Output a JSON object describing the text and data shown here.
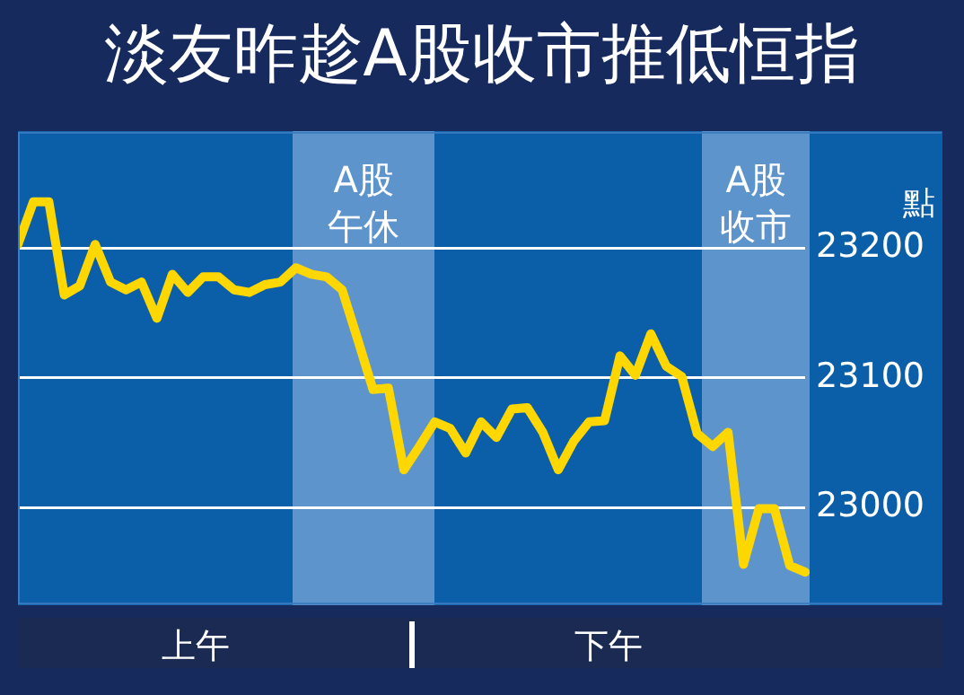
{
  "chart_data": {
    "type": "line",
    "title": "淡友昨趁A股收市推低恒指",
    "ylabel": "點",
    "categories": [
      null,
      null,
      null,
      null,
      null,
      null,
      null,
      null,
      null,
      null,
      null,
      null,
      null,
      null,
      null,
      null,
      null,
      null,
      null,
      null,
      null,
      null,
      null,
      null,
      null,
      null,
      null,
      null,
      null,
      null,
      null,
      null,
      null,
      null,
      null,
      null,
      null,
      null,
      null,
      null,
      null,
      null,
      null,
      null,
      null,
      null,
      null,
      null,
      null,
      null,
      null,
      null
    ],
    "series": [
      {
        "color": "#ffd700",
        "values": [
          23203,
          23236,
          23236,
          23164,
          23171,
          23203,
          23174,
          23168,
          23174,
          23146,
          23180,
          23166,
          23178,
          23178,
          23168,
          23166,
          23172,
          23174,
          23185,
          23180,
          23178,
          23168,
          23130,
          23091,
          23092,
          23029,
          23047,
          23066,
          23061,
          23042,
          23066,
          23054,
          23076,
          23077,
          23058,
          23029,
          23051,
          23066,
          23067,
          23117,
          23102,
          23134,
          23109,
          23101,
          23057,
          23047,
          23058,
          22956,
          22999,
          22999,
          22955,
          22950
        ]
      }
    ],
    "ylim": [
      22925,
      23290
    ],
    "yticks": [
      23000,
      23100,
      23200
    ],
    "tick_labels": "y",
    "grid": "y",
    "legend": false,
    "marker": "none",
    "line_style": "solid",
    "annotations": [
      "A股午休",
      "A股收市",
      "上午",
      "下午"
    ]
  }
}
